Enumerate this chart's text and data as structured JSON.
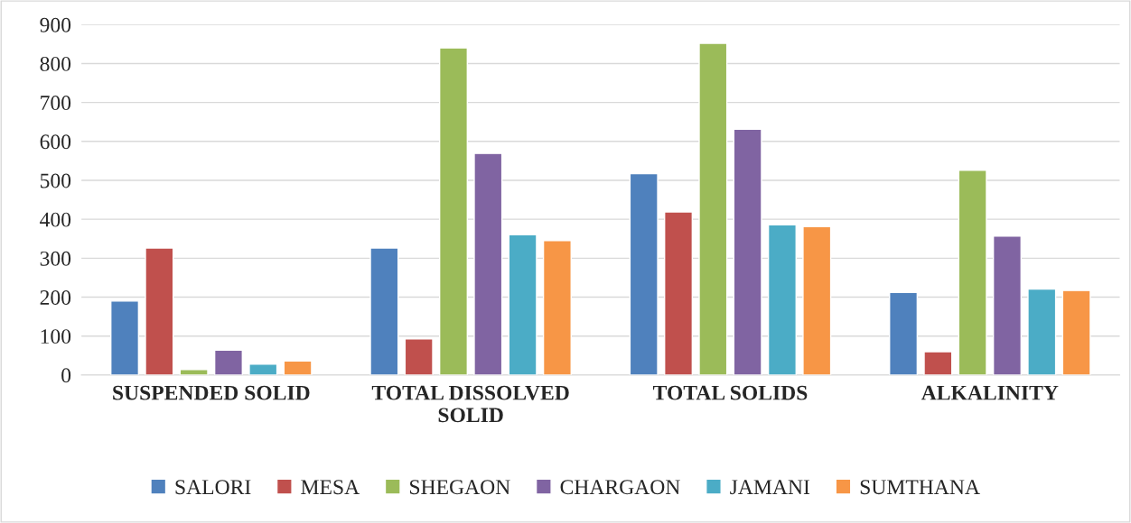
{
  "chart_data": {
    "type": "bar",
    "categories": [
      "SUSPENDED SOLID",
      "TOTAL DISSOLVED SOLID",
      "TOTAL SOLIDS",
      "ALKALINITY"
    ],
    "series": [
      {
        "name": "SALORI",
        "color": "#4f81bd",
        "values": [
          190,
          326,
          517,
          212
        ]
      },
      {
        "name": "MESA",
        "color": "#c0504d",
        "values": [
          326,
          93,
          419,
          60
        ]
      },
      {
        "name": "SHEGAON",
        "color": "#9bbb59",
        "values": [
          14,
          840,
          852,
          526
        ]
      },
      {
        "name": "CHARGAON",
        "color": "#8064a2",
        "values": [
          64,
          569,
          631,
          357
        ]
      },
      {
        "name": "JAMANI",
        "color": "#4bacc6",
        "values": [
          28,
          360,
          386,
          221
        ]
      },
      {
        "name": "SUMTHANA",
        "color": "#f79646",
        "values": [
          36,
          345,
          381,
          217
        ]
      }
    ],
    "ylim": [
      0,
      900
    ],
    "yticks": [
      0,
      100,
      200,
      300,
      400,
      500,
      600,
      700,
      800,
      900
    ],
    "grid": "y",
    "legend": "bottom"
  }
}
